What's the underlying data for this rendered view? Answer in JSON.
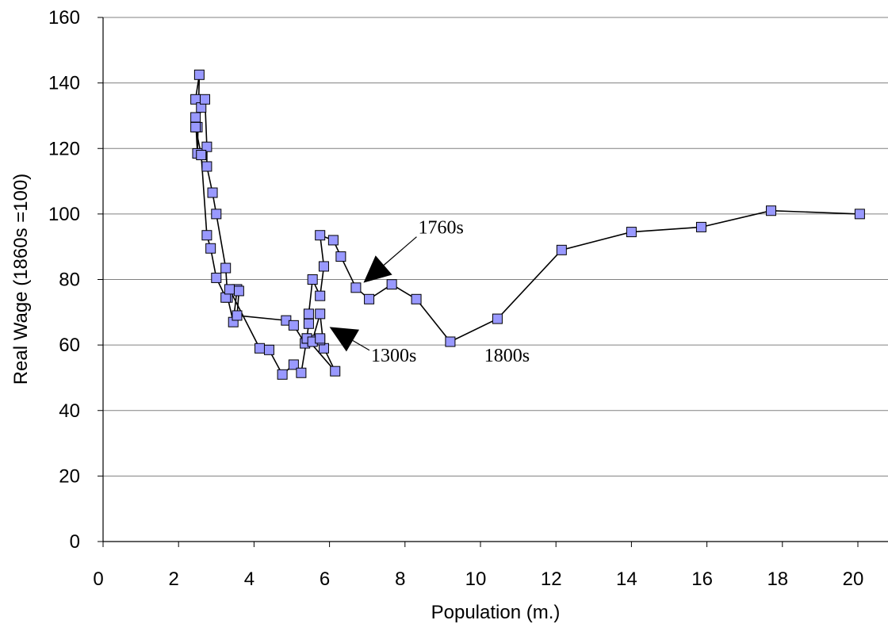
{
  "chart_data": {
    "type": "scatter",
    "xlabel": "Population (m.)",
    "ylabel": "Real Wage (1860s =100)",
    "xlim": [
      0,
      21
    ],
    "ylim": [
      0,
      160
    ],
    "x_ticks": [
      "0",
      "2",
      "4",
      "6",
      "8",
      "10",
      "12",
      "14",
      "16",
      "18",
      "20"
    ],
    "y_ticks": [
      "0",
      "20",
      "40",
      "60",
      "80",
      "100",
      "120",
      "140",
      "160"
    ],
    "grid": "horizontal",
    "marker_color": "#9999ff",
    "line_color": "#000000",
    "series": [
      {
        "points": [
          [
            2.45,
            135
          ],
          [
            2.55,
            142.5
          ],
          [
            2.5,
            118.5
          ],
          [
            2.45,
            129.5
          ],
          [
            2.5,
            126.5
          ],
          [
            2.6,
            132.5
          ],
          [
            2.7,
            135
          ],
          [
            2.75,
            120.5
          ],
          [
            2.75,
            114.5
          ],
          [
            2.9,
            106.5
          ],
          [
            3.0,
            100
          ],
          [
            3.25,
            83.5
          ],
          [
            3.3,
            74.5
          ],
          [
            3.45,
            67
          ],
          [
            3.55,
            77
          ],
          [
            3.6,
            76.5
          ],
          [
            3.55,
            69
          ],
          [
            4.85,
            67.5
          ],
          [
            5.05,
            66
          ],
          [
            5.35,
            60.5
          ],
          [
            5.55,
            61.5
          ],
          [
            5.75,
            69.5
          ],
          [
            5.85,
            59
          ],
          [
            5.75,
            61.5
          ],
          [
            6.15,
            52
          ],
          [
            5.4,
            62
          ],
          [
            5.45,
            66.5
          ],
          [
            5.45,
            69.5
          ],
          [
            5.55,
            80
          ],
          [
            5.75,
            75
          ],
          [
            5.85,
            84
          ],
          [
            5.75,
            93.5
          ],
          [
            6.1,
            92
          ],
          [
            6.3,
            87
          ],
          [
            6.7,
            77.5
          ],
          [
            7.05,
            74
          ],
          [
            7.65,
            78.5
          ],
          [
            8.3,
            74
          ],
          [
            9.2,
            61
          ],
          [
            10.45,
            68
          ],
          [
            12.15,
            89
          ],
          [
            14.0,
            94.5
          ],
          [
            15.85,
            96
          ],
          [
            17.7,
            101
          ],
          [
            20.05,
            100
          ]
        ]
      },
      {
        "points": [
          [
            2.45,
            126.5
          ],
          [
            2.6,
            118
          ],
          [
            2.75,
            93.5
          ],
          [
            2.85,
            89.5
          ],
          [
            3.0,
            80.5
          ],
          [
            3.25,
            74.5
          ],
          [
            3.35,
            77
          ],
          [
            4.15,
            59
          ],
          [
            4.4,
            58.5
          ],
          [
            4.75,
            51
          ],
          [
            5.05,
            54
          ],
          [
            5.25,
            51.5
          ],
          [
            5.4,
            62
          ],
          [
            5.55,
            61
          ],
          [
            5.75,
            62
          ]
        ]
      }
    ],
    "annotations": [
      {
        "text": "1760s",
        "x": 8.35,
        "y": 94,
        "arrow_to": [
          6.9,
          79
        ]
      },
      {
        "text": "1300s",
        "x": 7.1,
        "y": 55,
        "arrow_to": [
          6.0,
          65.5
        ]
      },
      {
        "text": "1800s",
        "x": 10.1,
        "y": 55
      }
    ]
  }
}
